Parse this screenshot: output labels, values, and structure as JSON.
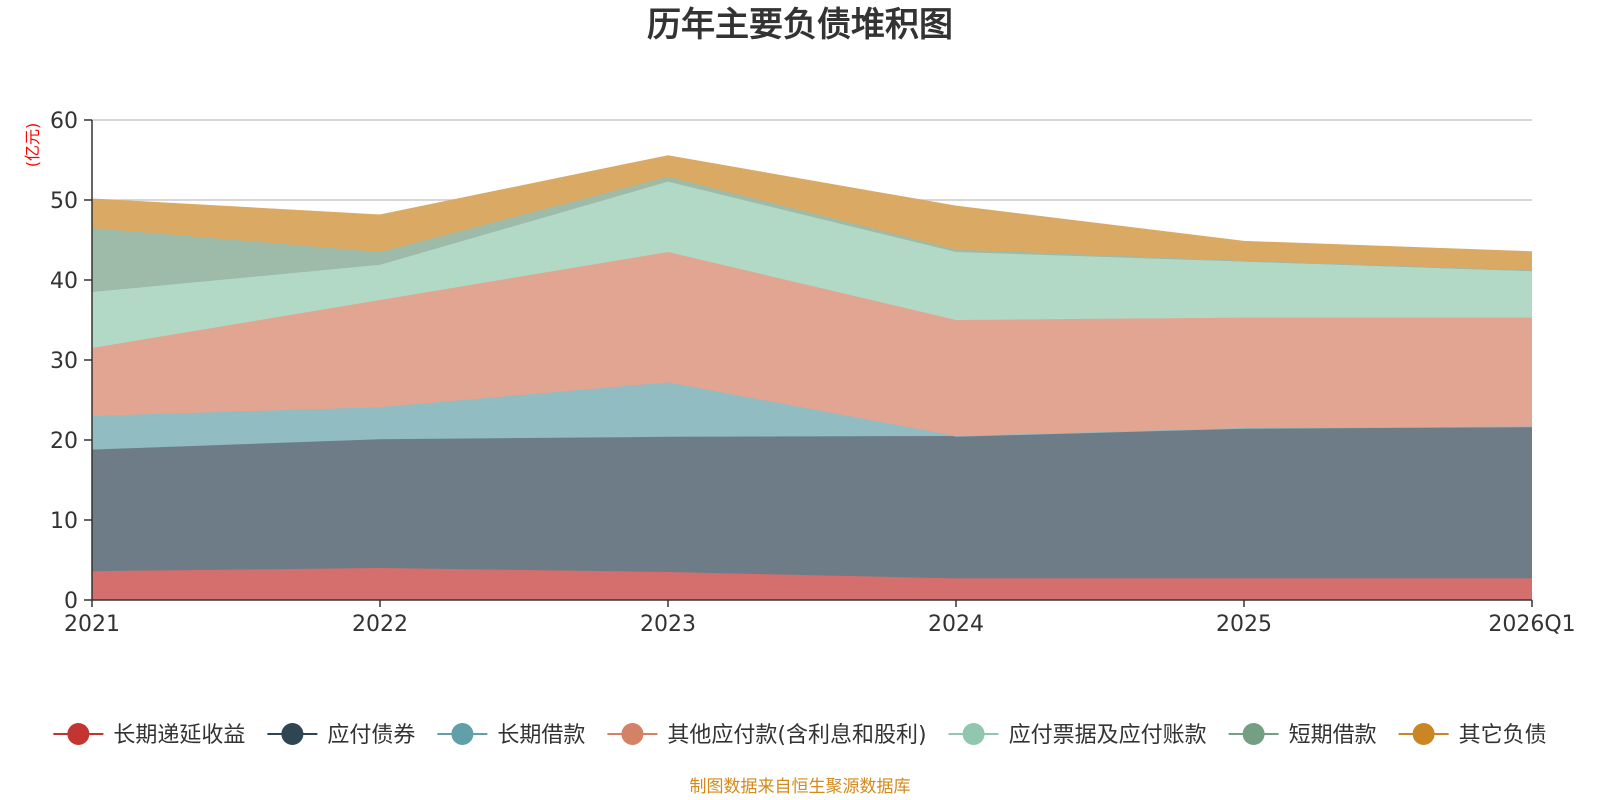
{
  "chart_data": {
    "type": "area",
    "stacked": true,
    "title": "历年主要负债堆积图",
    "unit_label": "(亿元)",
    "x": [
      "2021",
      "2022",
      "2023",
      "2024",
      "2025",
      "2026Q1"
    ],
    "y_ticks": [
      0,
      10,
      20,
      30,
      40,
      50,
      60
    ],
    "ylim": [
      0,
      60
    ],
    "grid": true,
    "legend_position": "bottom",
    "series": [
      {
        "name": "长期递延收益",
        "color": "#c23531",
        "area_color": "#d46f6d",
        "values": [
          3.6,
          4.0,
          3.5,
          2.7,
          2.7,
          2.7
        ]
      },
      {
        "name": "应付债券",
        "color": "#2f4554",
        "area_color": "#6d7c87",
        "values": [
          15.2,
          16.1,
          16.9,
          17.8,
          18.8,
          19.0
        ]
      },
      {
        "name": "长期借款",
        "color": "#61a0a8",
        "area_color": "#90bcc2",
        "values": [
          4.2,
          4.0,
          6.8,
          0.0,
          0.0,
          0.0
        ]
      },
      {
        "name": "其他应付款(含利息和股利)",
        "color": "#d48265",
        "area_color": "#e2a591",
        "values": [
          8.5,
          13.4,
          16.3,
          14.5,
          13.8,
          13.6
        ]
      },
      {
        "name": "应付票据及应付账款",
        "color": "#91c7ae",
        "area_color": "#b2d9c6",
        "values": [
          7.0,
          4.4,
          8.8,
          8.5,
          7.0,
          5.8
        ]
      },
      {
        "name": "短期借款",
        "color": "#749f83",
        "area_color": "#9ebaa8",
        "values": [
          8.0,
          1.6,
          0.6,
          0.3,
          0.1,
          0.1
        ]
      },
      {
        "name": "其它负债",
        "color": "#ca8622",
        "area_color": "#daa963",
        "values": [
          3.6,
          4.6,
          2.6,
          5.4,
          2.4,
          2.3
        ]
      }
    ],
    "source_note": "制图数据来自恒生聚源数据库"
  }
}
